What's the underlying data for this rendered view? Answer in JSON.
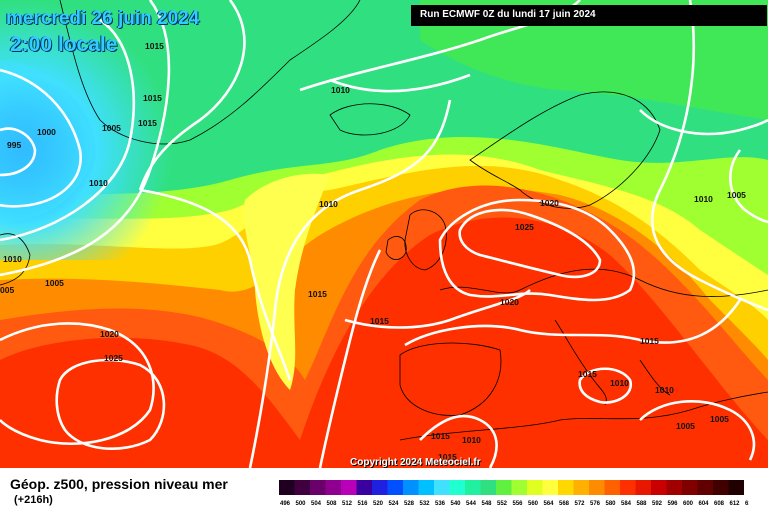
{
  "title": {
    "date": "mercredi 26 juin 2024",
    "time": "2:00 locale"
  },
  "run_info": "Run ECMWF 0Z du lundi 17 juin 2024",
  "copyright": "Copyright 2024 Meteociel.fr",
  "product": "Géop. z500, pression niveau mer",
  "lead_time": "(+216h)",
  "colors": {
    "coast": "#000000",
    "isobar": "#ffffff",
    "deep_low": "#1e90ff",
    "cold_cyan": "#40e0ff",
    "green": "#30e080",
    "yellow_green": "#a0ff30",
    "yellow": "#ffff40",
    "orange": "#ff8c00",
    "red": "#ff3000"
  },
  "pressure_labels": [
    {
      "text": "1015"
    },
    {
      "text": "1015"
    },
    {
      "text": "1015"
    },
    {
      "text": "1005"
    },
    {
      "text": "1000"
    },
    {
      "text": "995"
    },
    {
      "text": "1010"
    },
    {
      "text": "1010"
    },
    {
      "text": "1010"
    },
    {
      "text": "1010"
    },
    {
      "text": "1005"
    },
    {
      "text": "005"
    },
    {
      "text": "1020"
    },
    {
      "text": "1025"
    },
    {
      "text": "1015"
    },
    {
      "text": "1015"
    },
    {
      "text": "1020"
    },
    {
      "text": "1025"
    },
    {
      "text": "1020"
    },
    {
      "text": "1010"
    },
    {
      "text": "1005"
    },
    {
      "text": "1015"
    },
    {
      "text": "1015"
    },
    {
      "text": "1010"
    },
    {
      "text": "1010"
    },
    {
      "text": "1005"
    },
    {
      "text": "1005"
    },
    {
      "text": "1015"
    },
    {
      "text": "1010"
    },
    {
      "text": "1015"
    }
  ],
  "colorbar": {
    "labels": [
      "496",
      "500",
      "504",
      "508",
      "512",
      "516",
      "520",
      "524",
      "528",
      "532",
      "536",
      "540",
      "544",
      "548",
      "552",
      "556",
      "560",
      "564",
      "568",
      "572",
      "576",
      "580",
      "584",
      "588",
      "592",
      "596",
      "600",
      "604",
      "608",
      "612",
      "616"
    ],
    "colors": [
      "#200020",
      "#400040",
      "#6a006a",
      "#900090",
      "#b800b8",
      "#3a00a0",
      "#2020e0",
      "#0050ff",
      "#0090ff",
      "#00c0ff",
      "#40e0ff",
      "#20ffd0",
      "#20f0a0",
      "#30e080",
      "#60f040",
      "#a0ff30",
      "#e0ff20",
      "#ffff40",
      "#ffd800",
      "#ffb000",
      "#ff8c00",
      "#ff6000",
      "#ff3000",
      "#e81800",
      "#c80000",
      "#a00000",
      "#800000",
      "#600000",
      "#400000",
      "#200000"
    ]
  }
}
